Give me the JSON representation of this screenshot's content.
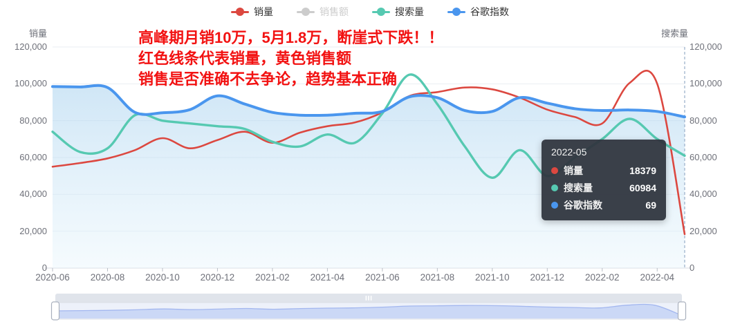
{
  "legend": {
    "items": [
      {
        "id": "sales",
        "label": "销量",
        "color": "#dc4840",
        "disabled": false
      },
      {
        "id": "sales-amount",
        "label": "销售额",
        "color": "#cccccc",
        "disabled": true
      },
      {
        "id": "search",
        "label": "搜索量",
        "color": "#56c9b1",
        "disabled": false
      },
      {
        "id": "google-index",
        "label": "谷歌指数",
        "color": "#4a96ee",
        "disabled": false
      }
    ]
  },
  "axes": {
    "left": {
      "name": "销量",
      "tick_labels": [
        "120,000",
        "100,000",
        "80,000",
        "60,000",
        "40,000",
        "20,000",
        "0"
      ]
    },
    "right": {
      "name": "搜索量",
      "tick_labels": [
        "120,000",
        "100,000",
        "80,000",
        "60,000",
        "40,000",
        "20,000",
        "0"
      ]
    },
    "x": {
      "visible_labels": [
        "2020-06",
        "2020-08",
        "2020-10",
        "2020-12",
        "2021-02",
        "2021-04",
        "2021-06",
        "2021-08",
        "2021-10",
        "2021-12",
        "2022-02",
        "2022-04"
      ]
    }
  },
  "annotation": {
    "color": "#f21212",
    "lines": [
      "高峰期月销10万，5月1.8万，断崖式下跌！！",
      "红色线条代表销量，黄色销售额",
      "销售是否准确不去争论，趋势基本正确"
    ]
  },
  "tooltip": {
    "title": "2022-05",
    "rows": [
      {
        "label": "销量",
        "value": "18379",
        "color": "#dc4840"
      },
      {
        "label": "搜索量",
        "value": "60984",
        "color": "#56c9b1"
      },
      {
        "label": "谷歌指数",
        "value": "69",
        "color": "#4a96ee"
      }
    ]
  },
  "chart_data": {
    "type": "line",
    "title": "",
    "x": [
      "2020-06",
      "2020-07",
      "2020-08",
      "2020-09",
      "2020-10",
      "2020-11",
      "2020-12",
      "2021-01",
      "2021-02",
      "2021-03",
      "2021-04",
      "2021-05",
      "2021-06",
      "2021-07",
      "2021-08",
      "2021-09",
      "2021-10",
      "2021-11",
      "2021-12",
      "2022-01",
      "2022-02",
      "2022-03",
      "2022-04",
      "2022-05"
    ],
    "series": [
      {
        "name": "销量",
        "color": "#dc4840",
        "axis": "left",
        "hidden": false,
        "area": false,
        "values": [
          55000,
          57000,
          59500,
          64000,
          70500,
          65000,
          69500,
          74000,
          68000,
          73500,
          77000,
          79000,
          84500,
          93500,
          95500,
          98000,
          97000,
          92500,
          86000,
          82000,
          78500,
          100500,
          100000,
          18379
        ]
      },
      {
        "name": "销售额",
        "color": "#cccccc",
        "axis": "left",
        "hidden": true,
        "area": false,
        "values": []
      },
      {
        "name": "搜索量",
        "color": "#56c9b1",
        "axis": "right",
        "hidden": false,
        "area": false,
        "values": [
          74000,
          63000,
          65000,
          83000,
          80000,
          78500,
          77000,
          75500,
          68500,
          66000,
          72500,
          68000,
          84000,
          105000,
          89000,
          66000,
          49000,
          64000,
          50000,
          60000,
          70000,
          81000,
          70000,
          60984
        ]
      },
      {
        "name": "谷歌指数",
        "color": "#4a96ee",
        "axis": "right",
        "hidden": false,
        "area": true,
        "values": [
          98500,
          98300,
          98000,
          84500,
          84300,
          86000,
          93500,
          89000,
          84500,
          83000,
          83000,
          84000,
          85000,
          93000,
          92500,
          85500,
          85000,
          92500,
          89500,
          86500,
          85500,
          85800,
          85000,
          82000
        ],
        "note": "values are plotted positions in axis units; tooltip reports index value 69 at 2022-05"
      }
    ],
    "yticks": [
      0,
      20000,
      40000,
      60000,
      80000,
      100000,
      120000
    ],
    "ylim": [
      0,
      120000
    ],
    "grid": true,
    "legend_position": "top",
    "axis_pointer_x": "2022-05"
  }
}
